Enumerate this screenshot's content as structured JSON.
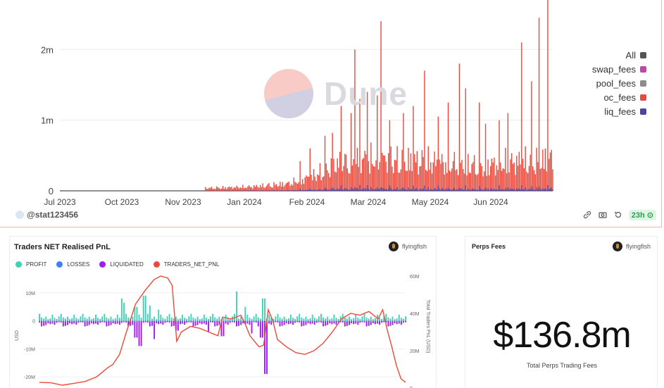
{
  "top_chart": {
    "legend": [
      {
        "label": "All",
        "color": "#555555"
      },
      {
        "label": "swap_fees",
        "color": "#c443a7"
      },
      {
        "label": "pool_fees",
        "color": "#8c8c8c"
      },
      {
        "label": "oc_fees",
        "color": "#ea4a3c"
      },
      {
        "label": "liq_fees",
        "color": "#4b44a0"
      }
    ],
    "watermark": "Dune",
    "author": "@stat123456",
    "age_badge": "23h",
    "footer_icons": [
      "embed-icon",
      "camera-icon",
      "refresh-icon"
    ]
  },
  "pnl_panel": {
    "title": "Traders NET Realised PnL",
    "author": "flyingfish",
    "legend": [
      {
        "label": "PROFIT",
        "color": "#3fd3b5"
      },
      {
        "label": "LOSSES",
        "color": "#3f7ff0"
      },
      {
        "label": "LIQUIDATED",
        "color": "#a319f2"
      },
      {
        "label": "TRADERS_NET_PNL",
        "color": "#ea4a3c"
      }
    ]
  },
  "fees_panel": {
    "title": "Perps Fees",
    "author": "flyingfish",
    "value": "$136.8m",
    "subtitle": "Total Perps Trading Fees"
  },
  "chart_data": [
    {
      "type": "bar",
      "stacked": true,
      "x_ticks": [
        "Jul 2023",
        "Oct 2023",
        "Nov 2023",
        "Jan 2024",
        "Feb 2024",
        "Mar 2024",
        "May 2024",
        "Jun 2024"
      ],
      "y_ticks": [
        "0",
        "1m",
        "2m"
      ],
      "ylim": [
        0,
        2700000
      ],
      "grid": true,
      "legend_position": "right",
      "series": [
        {
          "name": "oc_fees",
          "color": "#ea4a3c"
        },
        {
          "name": "liq_fees",
          "color": "#4b44a0"
        }
      ],
      "data_start": "2023-07-01",
      "data_end": "2024-07-31",
      "activity_start": "2023-10-26",
      "oc_baseline": [
        [
          "2023-10-26",
          60000
        ],
        [
          "2023-12-01",
          90000
        ],
        [
          "2024-01-01",
          160000
        ],
        [
          "2024-01-20",
          320000
        ],
        [
          "2024-02-10",
          600000
        ],
        [
          "2024-03-01",
          700000
        ],
        [
          "2024-04-15",
          650000
        ],
        [
          "2024-06-01",
          560000
        ],
        [
          "2024-07-31",
          700000
        ]
      ],
      "spikes": [
        [
          "2024-01-10",
          420000
        ],
        [
          "2024-01-18",
          600000
        ],
        [
          "2024-01-30",
          780000
        ],
        [
          "2024-02-05",
          820000
        ],
        [
          "2024-02-12",
          1200000
        ],
        [
          "2024-02-20",
          1100000
        ],
        [
          "2024-02-23",
          2000000
        ],
        [
          "2024-02-27",
          1300000
        ],
        [
          "2024-03-04",
          1400000
        ],
        [
          "2024-03-12",
          1350000
        ],
        [
          "2024-03-15",
          2400000
        ],
        [
          "2024-03-22",
          1000000
        ],
        [
          "2024-04-02",
          1100000
        ],
        [
          "2024-04-10",
          1200000
        ],
        [
          "2024-04-19",
          1700000
        ],
        [
          "2024-04-30",
          1050000
        ],
        [
          "2024-05-08",
          1250000
        ],
        [
          "2024-05-17",
          1800000
        ],
        [
          "2024-05-22",
          1450000
        ],
        [
          "2024-06-02",
          1250000
        ],
        [
          "2024-06-07",
          950000
        ],
        [
          "2024-06-18",
          1000000
        ],
        [
          "2024-06-25",
          1100000
        ],
        [
          "2024-07-06",
          2100000
        ],
        [
          "2024-07-14",
          1550000
        ],
        [
          "2024-07-20",
          2450000
        ],
        [
          "2024-07-27",
          2700000
        ]
      ]
    },
    {
      "type": "bar+line",
      "y_left_ticks": [
        "10M",
        "0",
        "-10M",
        "-20M"
      ],
      "y_left_label": "USD",
      "ylim_left": [
        -24000000,
        16000000
      ],
      "y_right_ticks": [
        "60M",
        "40M",
        "20M",
        "0"
      ],
      "y_right_label": "Total Traders PnL (USD)",
      "ylim_right": [
        0,
        60000000
      ],
      "profit_pattern": [
        2500000,
        1200000,
        800000,
        1500000,
        600000,
        900000,
        2200000,
        1100000,
        700000,
        1600000
      ],
      "profit_spikes": [
        [
          0.36,
          8000000
        ],
        [
          0.37,
          6500000
        ],
        [
          0.42,
          5000000
        ],
        [
          0.46,
          9000000
        ],
        [
          0.48,
          5500000
        ],
        [
          0.52,
          4000000
        ],
        [
          0.86,
          10500000
        ],
        [
          0.9,
          5000000
        ],
        [
          0.98,
          8000000
        ]
      ],
      "loss_pattern": [
        -600000,
        -1400000,
        -900000,
        -2000000,
        -700000,
        -1200000,
        -1800000,
        -500000,
        -1000000,
        -1500000
      ],
      "loss_spikes": [
        [
          0.42,
          -6000000
        ],
        [
          0.44,
          -9000000
        ],
        [
          0.5,
          -6500000
        ],
        [
          0.6,
          -3500000
        ],
        [
          0.74,
          -4000000
        ],
        [
          0.8,
          -5500000
        ],
        [
          0.93,
          -4500000
        ],
        [
          0.97,
          -6000000
        ],
        [
          0.99,
          -19000000
        ]
      ],
      "net_pnl_line": [
        [
          0.0,
          3000000
        ],
        [
          0.05,
          2800000
        ],
        [
          0.1,
          1500000
        ],
        [
          0.15,
          2500000
        ],
        [
          0.2,
          3500000
        ],
        [
          0.25,
          6000000
        ],
        [
          0.28,
          9000000
        ],
        [
          0.3,
          11000000
        ],
        [
          0.32,
          12500000
        ],
        [
          0.35,
          18000000
        ],
        [
          0.38,
          30000000
        ],
        [
          0.42,
          45000000
        ],
        [
          0.46,
          52000000
        ],
        [
          0.5,
          58000000
        ],
        [
          0.53,
          60000000
        ],
        [
          0.56,
          59000000
        ],
        [
          0.58,
          55000000
        ],
        [
          0.59,
          40000000
        ],
        [
          0.6,
          25000000
        ],
        [
          0.62,
          30000000
        ],
        [
          0.66,
          33000000
        ],
        [
          0.7,
          32000000
        ],
        [
          0.74,
          30000000
        ],
        [
          0.78,
          28000000
        ],
        [
          0.8,
          38000000
        ],
        [
          0.84,
          37000000
        ],
        [
          0.88,
          39000000
        ],
        [
          0.9,
          34000000
        ],
        [
          0.92,
          28000000
        ],
        [
          0.94,
          25000000
        ],
        [
          0.96,
          22000000
        ],
        [
          0.98,
          23000000
        ],
        [
          1.0,
          42000000
        ],
        [
          1.02,
          36000000
        ],
        [
          1.04,
          26000000
        ],
        [
          1.08,
          22000000
        ],
        [
          1.12,
          19000000
        ],
        [
          1.16,
          18000000
        ],
        [
          1.2,
          20000000
        ],
        [
          1.24,
          24000000
        ],
        [
          1.28,
          30000000
        ],
        [
          1.32,
          37000000
        ],
        [
          1.36,
          40000000
        ],
        [
          1.4,
          39000000
        ],
        [
          1.44,
          41000000
        ],
        [
          1.48,
          37000000
        ],
        [
          1.5,
          42000000
        ],
        [
          1.52,
          31000000
        ],
        [
          1.54,
          22000000
        ],
        [
          1.56,
          12000000
        ],
        [
          1.58,
          5000000
        ],
        [
          1.6,
          3000000
        ]
      ]
    }
  ]
}
